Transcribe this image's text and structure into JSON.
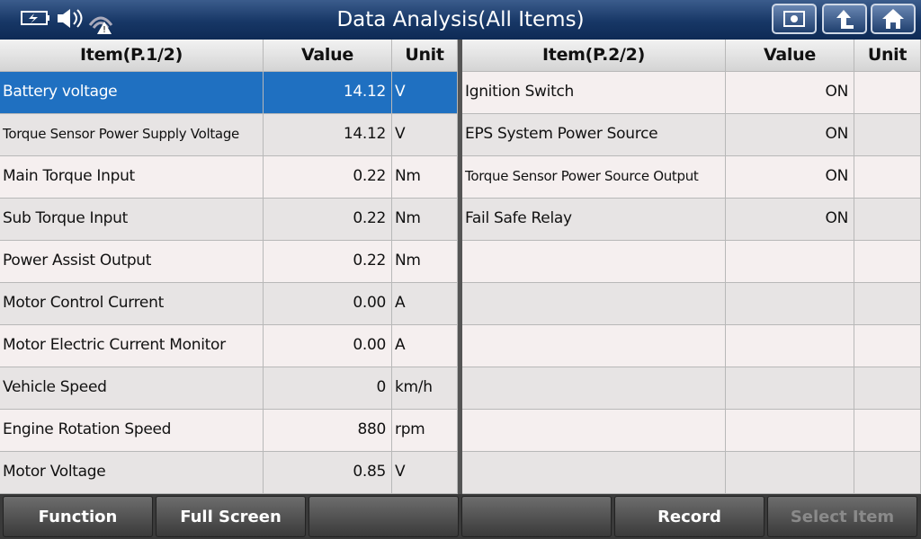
{
  "header": {
    "title": "Data Analysis(All Items)"
  },
  "tables": [
    {
      "columns": [
        "Item(P.1/2)",
        "Value",
        "Unit"
      ],
      "rows": [
        [
          "Battery voltage",
          "14.12",
          "V"
        ],
        [
          "Torque Sensor Power Supply Voltage",
          "14.12",
          "V"
        ],
        [
          "Main Torque Input",
          "0.22",
          "Nm"
        ],
        [
          "Sub Torque Input",
          "0.22",
          "Nm"
        ],
        [
          "Power Assist Output",
          "0.22",
          "Nm"
        ],
        [
          "Motor Control Current",
          "0.00",
          "A"
        ],
        [
          "Motor Electric Current Monitor",
          "0.00",
          "A"
        ],
        [
          "Vehicle Speed",
          "0",
          "km/h"
        ],
        [
          "Engine Rotation Speed",
          "880",
          "rpm"
        ],
        [
          "Motor Voltage",
          "0.85",
          "V"
        ]
      ]
    },
    {
      "columns": [
        "Item(P.2/2)",
        "Value",
        "Unit"
      ],
      "rows": [
        [
          "Ignition Switch",
          "ON"
        ],
        [
          "EPS System Power Source",
          "ON"
        ],
        [
          "Torque Sensor Power Source Output",
          "ON"
        ],
        [
          "Fail Safe Relay",
          "ON"
        ]
      ]
    }
  ],
  "buttons": [
    "Function",
    "Full Screen",
    "Record",
    "Select Item"
  ]
}
